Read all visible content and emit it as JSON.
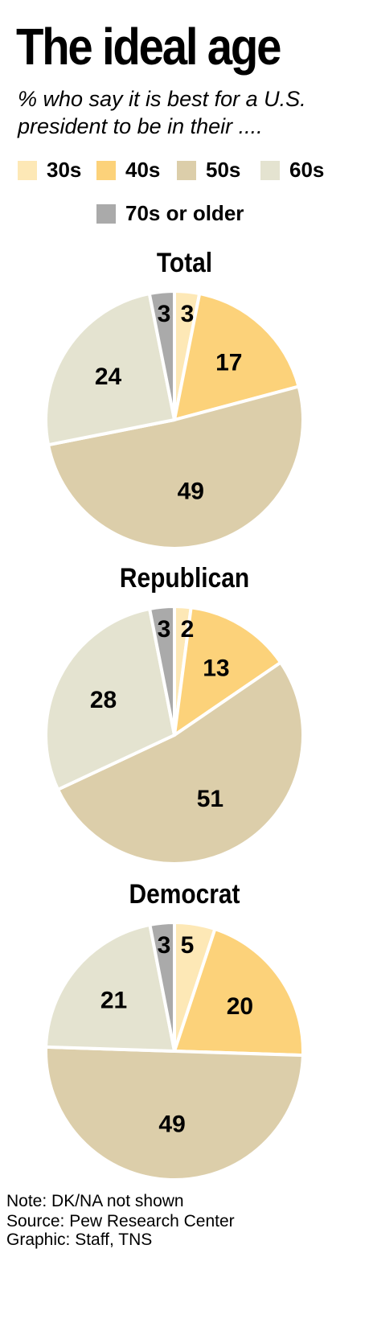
{
  "chart_data": {
    "type": "pie",
    "title": "The ideal age",
    "subtitle": "% who say it is best for a U.S. president to be in their ....",
    "categories": [
      "30s",
      "40s",
      "50s",
      "60s",
      "70s or older"
    ],
    "colors": {
      "30s": "#fde8b6",
      "40s": "#fcd27a",
      "50s": "#dcceaa",
      "60s": "#e4e3d0",
      "70s or older": "#aaaaaa"
    },
    "pies": [
      {
        "name": "Total",
        "values": [
          3,
          17,
          49,
          24,
          3
        ]
      },
      {
        "name": "Republican",
        "values": [
          2,
          13,
          51,
          28,
          3
        ]
      },
      {
        "name": "Democrat",
        "values": [
          5,
          20,
          49,
          21,
          3
        ]
      }
    ],
    "legend_placement": "top"
  },
  "footer": {
    "note": "Note: DK/NA not shown",
    "source": "Source: Pew Research Center",
    "credit": "Graphic: Staff, TNS"
  }
}
